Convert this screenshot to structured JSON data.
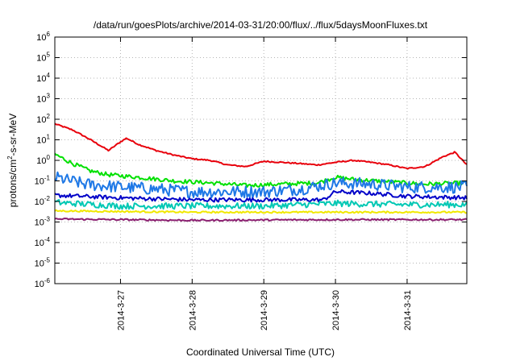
{
  "chart_data": {
    "type": "line",
    "title": "/data/run/goesPlots/archive/2014-03-31/20:00/flux/../flux/5daysMoonFluxes.txt",
    "xlabel": "Coordinated Universal Time (UTC)",
    "ylabel": {
      "prefix": "protons/cm",
      "sup": "2",
      "suffix": "-s-sr-MeV"
    },
    "xlim": [
      "2014-03-26T02:00",
      "2014-03-31T20:00"
    ],
    "ylim": [
      1e-06,
      1000000.0
    ],
    "y_scale": "log",
    "grid": true,
    "legend": "none",
    "x_ticks": [
      "2014-3-27",
      "2014-3-28",
      "2014-3-29",
      "2014-3-30",
      "2014-3-31"
    ],
    "y_ticks": [
      {
        "base": "10",
        "exp": "-6"
      },
      {
        "base": "10",
        "exp": "-5"
      },
      {
        "base": "10",
        "exp": "-4"
      },
      {
        "base": "10",
        "exp": "-3"
      },
      {
        "base": "10",
        "exp": "-2"
      },
      {
        "base": "10",
        "exp": "-1"
      },
      {
        "base": "10",
        "exp": "0"
      },
      {
        "base": "10",
        "exp": "1"
      },
      {
        "base": "10",
        "exp": "2"
      },
      {
        "base": "10",
        "exp": "3"
      },
      {
        "base": "10",
        "exp": "4"
      },
      {
        "base": "10",
        "exp": "5"
      },
      {
        "base": "10",
        "exp": "6"
      }
    ],
    "series": [
      {
        "color": "#e8000b",
        "noise": 0.03,
        "points": [
          [
            "2014-03-26T02:00",
            60
          ],
          [
            "2014-03-26T08:00",
            30
          ],
          [
            "2014-03-26T14:00",
            10
          ],
          [
            "2014-03-26T20:00",
            3
          ],
          [
            "2014-03-27T00:00",
            8
          ],
          [
            "2014-03-27T02:00",
            12
          ],
          [
            "2014-03-27T06:00",
            6
          ],
          [
            "2014-03-27T12:00",
            3
          ],
          [
            "2014-03-27T18:00",
            1.8
          ],
          [
            "2014-03-28T00:00",
            1.2
          ],
          [
            "2014-03-28T06:00",
            1.0
          ],
          [
            "2014-03-28T12:00",
            0.6
          ],
          [
            "2014-03-28T18:00",
            0.5
          ],
          [
            "2014-03-29T00:00",
            0.9
          ],
          [
            "2014-03-29T06:00",
            0.8
          ],
          [
            "2014-03-29T12:00",
            0.7
          ],
          [
            "2014-03-29T18:00",
            0.6
          ],
          [
            "2014-03-30T00:00",
            0.8
          ],
          [
            "2014-03-30T06:00",
            1.0
          ],
          [
            "2014-03-30T12:00",
            0.8
          ],
          [
            "2014-03-30T18:00",
            0.6
          ],
          [
            "2014-03-31T00:00",
            0.4
          ],
          [
            "2014-03-31T06:00",
            0.5
          ],
          [
            "2014-03-31T12:00",
            1.5
          ],
          [
            "2014-03-31T16:00",
            2.5
          ],
          [
            "2014-03-31T20:00",
            0.6
          ]
        ]
      },
      {
        "color": "#00e000",
        "noise": 0.1,
        "points": [
          [
            "2014-03-26T02:00",
            2
          ],
          [
            "2014-03-26T08:00",
            0.7
          ],
          [
            "2014-03-26T14:00",
            0.3
          ],
          [
            "2014-03-26T20:00",
            0.2
          ],
          [
            "2014-03-27T06:00",
            0.15
          ],
          [
            "2014-03-27T18:00",
            0.1
          ],
          [
            "2014-03-28T06:00",
            0.08
          ],
          [
            "2014-03-28T18:00",
            0.06
          ],
          [
            "2014-03-29T06:00",
            0.07
          ],
          [
            "2014-03-29T18:00",
            0.08
          ],
          [
            "2014-03-30T00:00",
            0.15
          ],
          [
            "2014-03-30T06:00",
            0.12
          ],
          [
            "2014-03-30T18:00",
            0.09
          ],
          [
            "2014-03-31T06:00",
            0.07
          ],
          [
            "2014-03-31T20:00",
            0.08
          ]
        ]
      },
      {
        "color": "#1e78e6",
        "noise": 0.3,
        "points": [
          [
            "2014-03-26T02:00",
            0.15
          ],
          [
            "2014-03-26T12:00",
            0.07
          ],
          [
            "2014-03-27T00:00",
            0.05
          ],
          [
            "2014-03-27T12:00",
            0.04
          ],
          [
            "2014-03-28T00:00",
            0.03
          ],
          [
            "2014-03-28T12:00",
            0.03
          ],
          [
            "2014-03-29T00:00",
            0.03
          ],
          [
            "2014-03-29T12:00",
            0.04
          ],
          [
            "2014-03-30T00:00",
            0.08
          ],
          [
            "2014-03-30T12:00",
            0.07
          ],
          [
            "2014-03-31T00:00",
            0.05
          ],
          [
            "2014-03-31T20:00",
            0.05
          ]
        ]
      },
      {
        "color": "#0000c8",
        "noise": 0.1,
        "points": [
          [
            "2014-03-26T02:00",
            0.02
          ],
          [
            "2014-03-27T00:00",
            0.015
          ],
          [
            "2014-03-28T00:00",
            0.012
          ],
          [
            "2014-03-29T00:00",
            0.012
          ],
          [
            "2014-03-29T20:00",
            0.012
          ],
          [
            "2014-03-30T00:00",
            0.03
          ],
          [
            "2014-03-30T12:00",
            0.025
          ],
          [
            "2014-03-31T00:00",
            0.018
          ],
          [
            "2014-03-31T20:00",
            0.015
          ]
        ]
      },
      {
        "color": "#00c8b4",
        "noise": 0.15,
        "points": [
          [
            "2014-03-26T02:00",
            0.009
          ],
          [
            "2014-03-27T00:00",
            0.006
          ],
          [
            "2014-03-28T00:00",
            0.006
          ],
          [
            "2014-03-29T00:00",
            0.006
          ],
          [
            "2014-03-30T00:00",
            0.008
          ],
          [
            "2014-03-31T00:00",
            0.007
          ],
          [
            "2014-03-31T20:00",
            0.007
          ]
        ]
      },
      {
        "color": "#f0e800",
        "noise": 0.04,
        "points": [
          [
            "2014-03-26T02:00",
            0.0035
          ],
          [
            "2014-03-28T00:00",
            0.003
          ],
          [
            "2014-03-30T00:00",
            0.003
          ],
          [
            "2014-03-31T20:00",
            0.003
          ]
        ]
      },
      {
        "color": "#8b2070",
        "noise": 0.04,
        "points": [
          [
            "2014-03-26T02:00",
            0.0014
          ],
          [
            "2014-03-28T00:00",
            0.0012
          ],
          [
            "2014-03-30T00:00",
            0.0013
          ],
          [
            "2014-03-31T20:00",
            0.0013
          ]
        ]
      }
    ]
  }
}
